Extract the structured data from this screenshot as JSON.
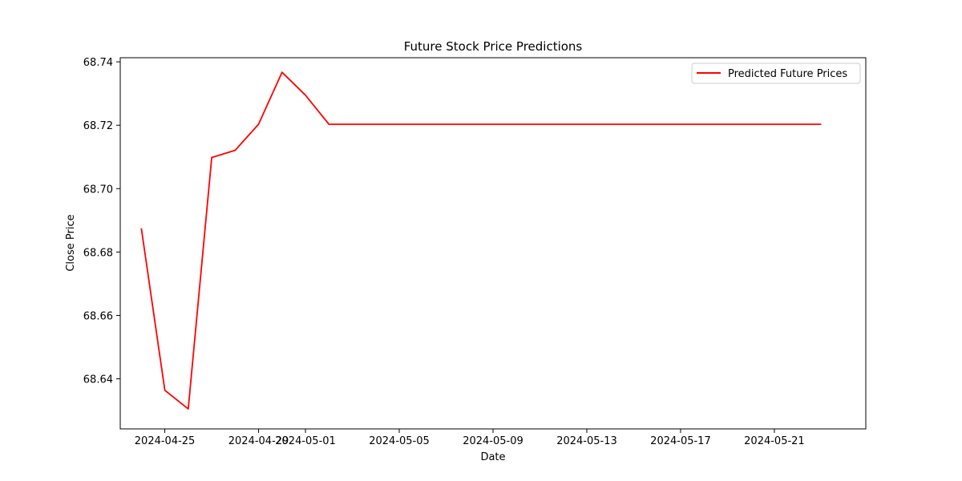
{
  "chart_data": {
    "type": "line",
    "title": "Future Stock Price Predictions",
    "xlabel": "Date",
    "ylabel": "Close Price",
    "x_ticks": [
      "2024-04-25",
      "2024-04-29",
      "2024-05-01",
      "2024-05-05",
      "2024-05-09",
      "2024-05-13",
      "2024-05-17",
      "2024-05-21"
    ],
    "y_ticks": [
      "68.64",
      "68.66",
      "68.68",
      "68.70",
      "68.72",
      "68.74"
    ],
    "xlim": [
      "2024-04-23",
      "2024-05-24"
    ],
    "ylim": [
      68.6242,
      68.7413
    ],
    "grid": false,
    "legend_position": "top-right",
    "series": [
      {
        "name": "Predicted Future Prices",
        "color": "#ff0000",
        "x": [
          "2024-04-24",
          "2024-04-25",
          "2024-04-26",
          "2024-04-27",
          "2024-04-28",
          "2024-04-29",
          "2024-04-30",
          "2024-05-01",
          "2024-05-02",
          "2024-05-03",
          "2024-05-04",
          "2024-05-05",
          "2024-05-06",
          "2024-05-07",
          "2024-05-08",
          "2024-05-09",
          "2024-05-10",
          "2024-05-11",
          "2024-05-12",
          "2024-05-13",
          "2024-05-14",
          "2024-05-15",
          "2024-05-16",
          "2024-05-17",
          "2024-05-18",
          "2024-05-19",
          "2024-05-20",
          "2024-05-21",
          "2024-05-22",
          "2024-05-23"
        ],
        "values": [
          68.6875,
          68.6364,
          68.6305,
          68.7098,
          68.7121,
          68.7203,
          68.7367,
          68.7295,
          68.7203,
          68.7203,
          68.7203,
          68.7203,
          68.7203,
          68.7203,
          68.7203,
          68.7203,
          68.7203,
          68.7203,
          68.7203,
          68.7203,
          68.7203,
          68.7203,
          68.7203,
          68.7203,
          68.7203,
          68.7203,
          68.7203,
          68.7203,
          68.7203,
          68.7203
        ]
      }
    ]
  }
}
